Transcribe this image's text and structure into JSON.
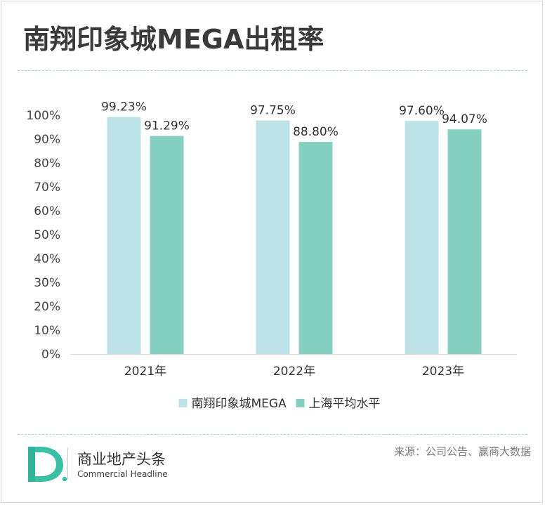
{
  "page": {
    "title": "南翔印象城MEGA出租率",
    "source": "来源：公司公告、赢商大数据",
    "brand": {
      "letter": "D",
      "name_cn": "商业地产头条",
      "name_en": "Commercial Headline"
    },
    "colors": {
      "series_1": "#bde2e6",
      "series_2": "#86d0c2",
      "accent": "#3bbfa5",
      "divider": "#a9dbd2"
    }
  },
  "chart_data": {
    "type": "bar",
    "categories": [
      "2021年",
      "2022年",
      "2023年"
    ],
    "series": [
      {
        "name": "南翔印象城MEGA",
        "values": [
          99.23,
          97.75,
          97.6
        ],
        "labels": [
          "99.23%",
          "97.75%",
          "97.60%"
        ],
        "color": "#bde2e6"
      },
      {
        "name": "上海平均水平",
        "values": [
          91.29,
          88.8,
          94.07
        ],
        "labels": [
          "91.29%",
          "88.80%",
          "94.07%"
        ],
        "color": "#86d0c2"
      }
    ],
    "yticks": [
      "0%",
      "10%",
      "20%",
      "30%",
      "40%",
      "50%",
      "60%",
      "70%",
      "80%",
      "90%",
      "100%"
    ],
    "ylim": [
      0,
      100
    ],
    "grid": false,
    "legend": "bottom"
  }
}
